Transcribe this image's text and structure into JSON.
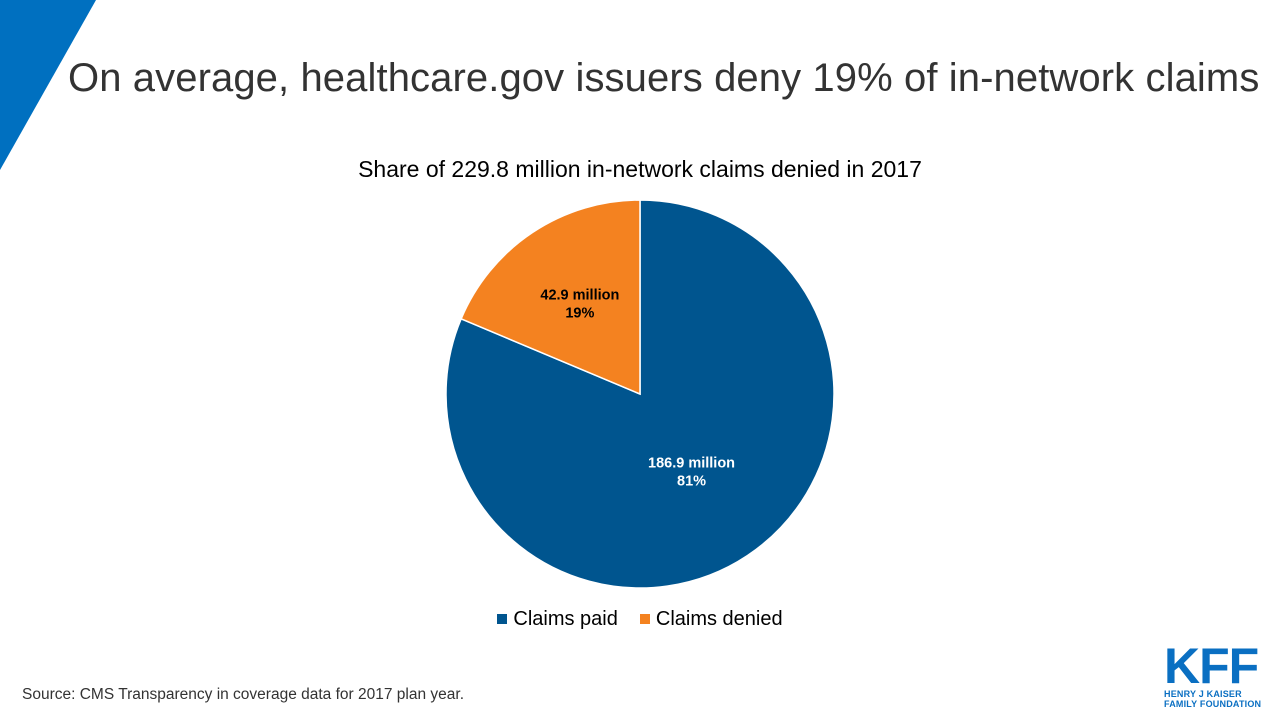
{
  "title": "On average, healthcare.gov issuers deny 19% of in-network claims",
  "colors": {
    "accent": "#0070C0",
    "paid": "#00558F",
    "denied": "#F48220",
    "logo": "#0A6FC2"
  },
  "chart_data": {
    "type": "pie",
    "title": "Share of 229.8 million in-network claims denied in 2017",
    "slices": [
      {
        "name": "Claims paid",
        "value": 186.9,
        "percent": 81,
        "label_value": "186.9 million",
        "label_percent": "81%"
      },
      {
        "name": "Claims denied",
        "value": 42.9,
        "percent": 19,
        "label_value": "42.9 million",
        "label_percent": "19%"
      }
    ],
    "legend_position": "bottom"
  },
  "legend": {
    "paid_label": "Claims paid",
    "denied_label": "Claims denied"
  },
  "source": "Source: CMS Transparency  in coverage data for 2017 plan year.",
  "logo": {
    "mark": "KFF",
    "line1": "HENRY J KAISER",
    "line2": "FAMILY FOUNDATION"
  }
}
